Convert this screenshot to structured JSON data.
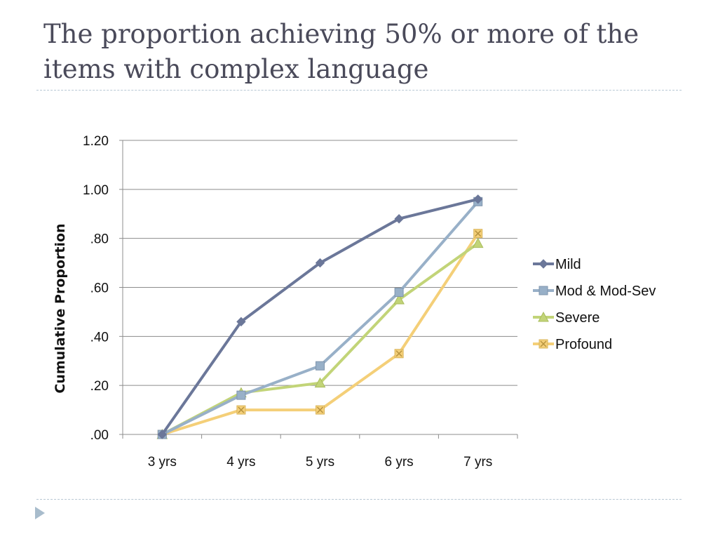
{
  "slide": {
    "title": "The proportion achieving 50% or more of the items with complex language"
  },
  "icons": {
    "nav": "triangle-right-icon"
  },
  "chart_data": {
    "type": "line",
    "title": "",
    "xlabel": "",
    "ylabel": "Cumulative Proportion",
    "categories": [
      "3 yrs",
      "4 yrs",
      "5 yrs",
      "6 yrs",
      "7 yrs"
    ],
    "ylim": [
      0,
      1.2
    ],
    "yticks": [
      0,
      0.2,
      0.4,
      0.6,
      0.8,
      1.0,
      1.2
    ],
    "ytick_labels": [
      ".00",
      ".20",
      ".40",
      ".60",
      ".80",
      "1.00",
      "1.20"
    ],
    "grid": true,
    "legend_position": "right",
    "series": [
      {
        "name": "Mild",
        "values": [
          0.0,
          0.46,
          0.7,
          0.88,
          0.96
        ],
        "color": "#6b7799",
        "marker": "diamond"
      },
      {
        "name": "Mod & Mod-Sev",
        "values": [
          0.0,
          0.16,
          0.28,
          0.58,
          0.95
        ],
        "color": "#98b0c8",
        "marker": "square"
      },
      {
        "name": "Severe",
        "values": [
          0.0,
          0.17,
          0.21,
          0.55,
          0.78
        ],
        "color": "#c2d478",
        "marker": "triangle"
      },
      {
        "name": "Profound",
        "values": [
          0.0,
          0.1,
          0.1,
          0.33,
          0.82
        ],
        "color": "#f4cf78",
        "marker": "x-square"
      }
    ]
  }
}
